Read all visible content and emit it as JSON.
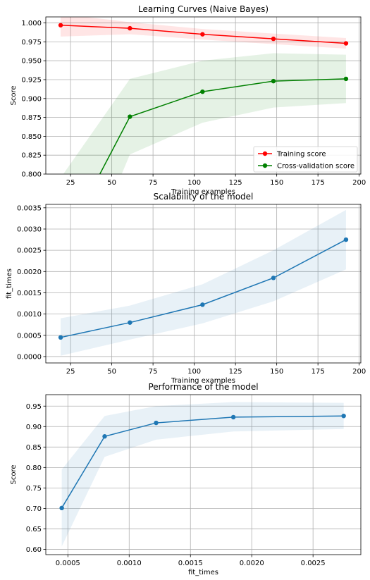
{
  "chart_data": [
    {
      "type": "line",
      "title": "Learning Curves (Naive Bayes)",
      "xlabel": "Training examples",
      "ylabel": "Score",
      "xlim": [
        10,
        201
      ],
      "ylim": [
        0.8,
        1.008
      ],
      "xticks": [
        25,
        50,
        75,
        100,
        125,
        150,
        175,
        200
      ],
      "yticks": [
        0.8,
        0.825,
        0.85,
        0.875,
        0.9,
        0.925,
        0.95,
        0.975,
        1.0
      ],
      "xtick_labels": [
        "25",
        "50",
        "75",
        "100",
        "125",
        "150",
        "175",
        "200"
      ],
      "ytick_labels": [
        "0.800",
        "0.825",
        "0.850",
        "0.875",
        "0.900",
        "0.925",
        "0.950",
        "0.975",
        "1.000"
      ],
      "grid": true,
      "legend_position": "lower-right",
      "series": [
        {
          "name": "Training score",
          "color": "#ff0000",
          "x": [
            19,
            61,
            105,
            148,
            192
          ],
          "values": [
            0.997,
            0.993,
            0.985,
            0.979,
            0.973
          ],
          "band_lower": [
            0.982,
            0.985,
            0.978,
            0.972,
            0.966
          ],
          "band_upper": [
            1.012,
            1.001,
            0.992,
            0.986,
            0.98
          ]
        },
        {
          "name": "Cross-validation score",
          "color": "#008000",
          "x": [
            19,
            61,
            105,
            148,
            192
          ],
          "values": [
            0.701,
            0.876,
            0.909,
            0.923,
            0.926
          ],
          "band_lower": [
            0.607,
            0.826,
            0.868,
            0.888,
            0.894
          ],
          "band_upper": [
            0.795,
            0.926,
            0.95,
            0.96,
            0.958
          ]
        }
      ]
    },
    {
      "type": "line",
      "title": "Scalability of the model",
      "xlabel": "Training examples",
      "ylabel": "fit_times",
      "xlim": [
        10,
        201
      ],
      "ylim": [
        -0.00015,
        0.00358
      ],
      "xticks": [
        25,
        50,
        75,
        100,
        125,
        150,
        175,
        200
      ],
      "yticks": [
        0,
        0.0005,
        0.001,
        0.0015,
        0.002,
        0.0025,
        0.003,
        0.0035
      ],
      "xtick_labels": [
        "25",
        "50",
        "75",
        "100",
        "125",
        "150",
        "175",
        "200"
      ],
      "ytick_labels": [
        "0.0000",
        "0.0005",
        "0.0010",
        "0.0015",
        "0.0020",
        "0.0025",
        "0.0030",
        "0.0035"
      ],
      "grid": true,
      "series": [
        {
          "color": "#1f77b4",
          "x": [
            19,
            61,
            105,
            148,
            192
          ],
          "values": [
            0.00045,
            0.0008,
            0.00122,
            0.00185,
            0.00275
          ],
          "band_lower": [
            2e-05,
            0.0004,
            0.00078,
            0.0013,
            0.00205
          ],
          "band_upper": [
            0.0009,
            0.0012,
            0.0017,
            0.0025,
            0.00345
          ]
        }
      ]
    },
    {
      "type": "line",
      "title": "Performance of the model",
      "xlabel": "fit_times",
      "ylabel": "Score",
      "xlim": [
        0.00032,
        0.00289
      ],
      "ylim": [
        0.587,
        0.978
      ],
      "xticks": [
        0.0005,
        0.001,
        0.0015,
        0.002,
        0.0025
      ],
      "yticks": [
        0.6,
        0.65,
        0.7,
        0.75,
        0.8,
        0.85,
        0.9,
        0.95
      ],
      "xtick_labels": [
        "0.0005",
        "0.0010",
        "0.0015",
        "0.0020",
        "0.0025"
      ],
      "ytick_labels": [
        "0.60",
        "0.65",
        "0.70",
        "0.75",
        "0.80",
        "0.85",
        "0.90",
        "0.95"
      ],
      "grid": true,
      "series": [
        {
          "color": "#1f77b4",
          "x": [
            0.00045,
            0.0008,
            0.00122,
            0.00185,
            0.00275
          ],
          "values": [
            0.701,
            0.876,
            0.909,
            0.923,
            0.926
          ],
          "band_lower": [
            0.607,
            0.826,
            0.868,
            0.888,
            0.894
          ],
          "band_upper": [
            0.795,
            0.926,
            0.95,
            0.96,
            0.958
          ]
        }
      ]
    }
  ]
}
